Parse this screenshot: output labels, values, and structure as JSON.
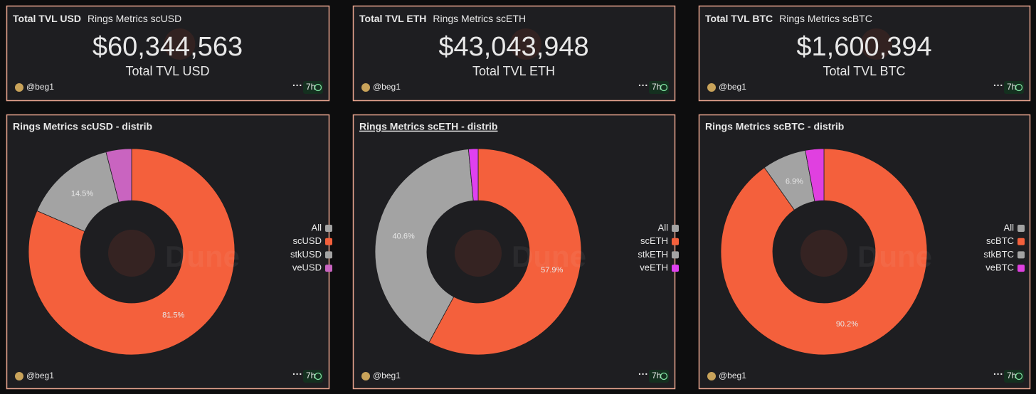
{
  "panels": [
    {
      "title": "Total TVL USD",
      "query": "Rings Metrics scUSD",
      "value": "$60,344,563",
      "label": "Total TVL USD",
      "author": "@beg1",
      "age": "7h"
    },
    {
      "title": "Total TVL ETH",
      "query": "Rings Metrics scETH",
      "value": "$43,043,948",
      "label": "Total TVL ETH",
      "author": "@beg1",
      "age": "7h"
    },
    {
      "title": "Total TVL BTC",
      "query": "Rings Metrics scBTC",
      "value": "$1,600,394",
      "label": "Total TVL BTC",
      "author": "@beg1",
      "age": "7h"
    }
  ],
  "chart_data": [
    {
      "type": "pie",
      "title": "Rings Metrics scUSD - distrib",
      "categories": [
        "All",
        "scUSD",
        "stkUSD",
        "veUSD"
      ],
      "values": [
        0,
        81.5,
        14.5,
        4
      ],
      "value_labels": [
        null,
        "81.5%",
        "14.5%",
        null
      ],
      "colors": [
        "#a3a3a3",
        "#f4603c",
        "#a3a3a3",
        "#c964c0"
      ],
      "author": "@beg1",
      "age": "7h",
      "watermark": "Dune"
    },
    {
      "type": "pie",
      "title": "Rings Metrics scETH - distrib",
      "categories": [
        "All",
        "scETH",
        "stkETH",
        "veETH"
      ],
      "values": [
        0,
        57.9,
        40.6,
        1.5
      ],
      "value_labels": [
        null,
        "57.9%",
        "40.6%",
        null
      ],
      "colors": [
        "#a3a3a3",
        "#f4603c",
        "#a3a3a3",
        "#e040f0"
      ],
      "author": "@beg1",
      "age": "7h",
      "watermark": "Dune"
    },
    {
      "type": "pie",
      "title": "Rings Metrics scBTC - distrib",
      "categories": [
        "All",
        "scBTC",
        "stkBTC",
        "veBTC"
      ],
      "values": [
        0,
        90.2,
        6.9,
        2.9
      ],
      "value_labels": [
        null,
        "90.2%",
        "6.9%",
        null
      ],
      "colors": [
        "#a3a3a3",
        "#f4603c",
        "#a3a3a3",
        "#e040e0"
      ],
      "author": "@beg1",
      "age": "7h",
      "watermark": "Dune"
    }
  ]
}
